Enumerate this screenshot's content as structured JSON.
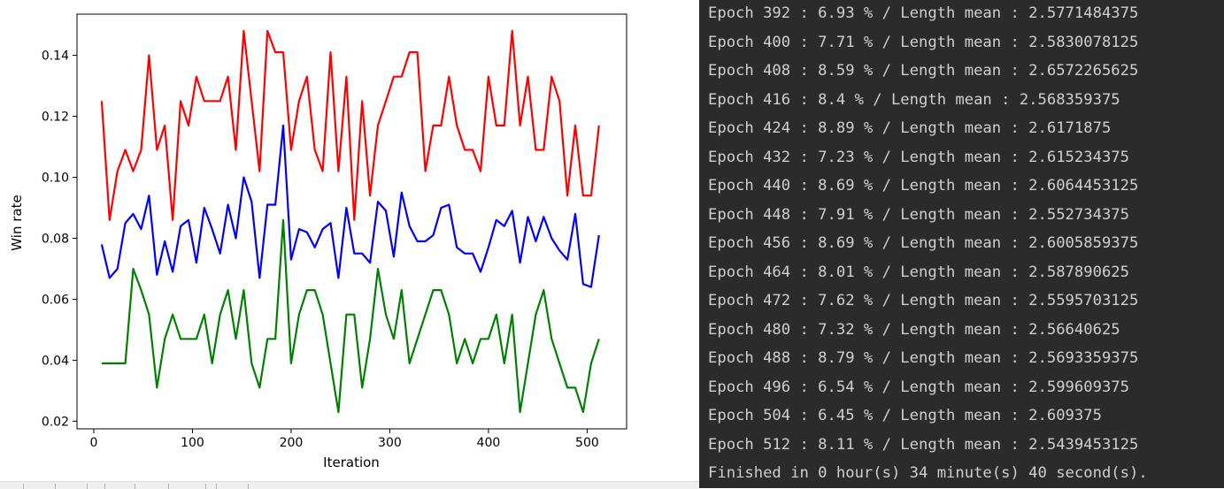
{
  "chart_data": {
    "type": "line",
    "title": "",
    "xlabel": "Iteration",
    "ylabel": "Win rate",
    "xlim": [
      -17,
      540
    ],
    "ylim": [
      0.0175,
      0.1535
    ],
    "xticks": [
      0,
      100,
      200,
      300,
      400,
      500
    ],
    "yticks": [
      0.02,
      0.04,
      0.06,
      0.08,
      0.1,
      0.12,
      0.14
    ],
    "ytick_labels": [
      "0.02",
      "0.04",
      "0.06",
      "0.08",
      "0.10",
      "0.12",
      "0.14"
    ],
    "grid": false,
    "x": [
      8,
      16,
      24,
      32,
      40,
      48,
      56,
      64,
      72,
      80,
      88,
      96,
      104,
      112,
      120,
      128,
      136,
      144,
      152,
      160,
      168,
      176,
      184,
      192,
      200,
      208,
      216,
      224,
      232,
      240,
      248,
      256,
      264,
      272,
      280,
      288,
      296,
      304,
      312,
      320,
      328,
      336,
      344,
      352,
      360,
      368,
      376,
      384,
      392,
      400,
      408,
      416,
      424,
      432,
      440,
      448,
      456,
      464,
      472,
      480,
      488,
      496,
      504,
      512
    ],
    "series": [
      {
        "color": "#ff0000",
        "values": [
          0.125,
          0.086,
          0.102,
          0.109,
          0.102,
          0.109,
          0.14,
          0.109,
          0.117,
          0.086,
          0.125,
          0.117,
          0.133,
          0.125,
          0.125,
          0.125,
          0.133,
          0.109,
          0.148,
          0.125,
          0.102,
          0.148,
          0.141,
          0.141,
          0.109,
          0.125,
          0.133,
          0.109,
          0.102,
          0.141,
          0.102,
          0.133,
          0.086,
          0.125,
          0.094,
          0.117,
          0.125,
          0.133,
          0.133,
          0.141,
          0.141,
          0.102,
          0.117,
          0.117,
          0.133,
          0.117,
          0.109,
          0.109,
          0.102,
          0.133,
          0.117,
          0.117,
          0.148,
          0.117,
          0.133,
          0.109,
          0.109,
          0.133,
          0.125,
          0.094,
          0.117,
          0.094,
          0.094,
          0.117
        ]
      },
      {
        "color": "#0000ff",
        "values": [
          0.078,
          0.067,
          0.07,
          0.085,
          0.088,
          0.083,
          0.094,
          0.068,
          0.079,
          0.069,
          0.084,
          0.086,
          0.072,
          0.09,
          0.083,
          0.075,
          0.091,
          0.08,
          0.1,
          0.092,
          0.067,
          0.091,
          0.091,
          0.117,
          0.073,
          0.083,
          0.082,
          0.077,
          0.083,
          0.085,
          0.067,
          0.09,
          0.075,
          0.075,
          0.072,
          0.092,
          0.089,
          0.074,
          0.095,
          0.084,
          0.079,
          0.079,
          0.081,
          0.09,
          0.091,
          0.077,
          0.075,
          0.075,
          0.069,
          0.077,
          0.086,
          0.084,
          0.089,
          0.072,
          0.087,
          0.079,
          0.087,
          0.08,
          0.076,
          0.073,
          0.088,
          0.065,
          0.064,
          0.081
        ]
      },
      {
        "color": "#008000",
        "values": [
          0.039,
          0.039,
          0.039,
          0.039,
          0.07,
          0.063,
          0.055,
          0.031,
          0.047,
          0.055,
          0.047,
          0.047,
          0.047,
          0.055,
          0.039,
          0.055,
          0.063,
          0.047,
          0.063,
          0.039,
          0.031,
          0.047,
          0.047,
          0.086,
          0.039,
          0.055,
          0.063,
          0.063,
          0.055,
          0.039,
          0.023,
          0.055,
          0.055,
          0.031,
          0.047,
          0.07,
          0.055,
          0.047,
          0.063,
          0.039,
          0.047,
          0.055,
          0.063,
          0.063,
          0.055,
          0.039,
          0.047,
          0.039,
          0.047,
          0.047,
          0.055,
          0.039,
          0.055,
          0.023,
          0.039,
          0.055,
          0.063,
          0.047,
          0.039,
          0.031,
          0.031,
          0.023,
          0.039,
          0.047
        ]
      }
    ]
  },
  "console": {
    "lines": [
      "Epoch 392 : 6.93 % / Length mean : 2.5771484375",
      "Epoch 400 : 7.71 % / Length mean : 2.5830078125",
      "Epoch 408 : 8.59 % / Length mean : 2.6572265625",
      "Epoch 416 : 8.4 % / Length mean : 2.568359375",
      "Epoch 424 : 8.89 % / Length mean : 2.6171875",
      "Epoch 432 : 7.23 % / Length mean : 2.615234375",
      "Epoch 440 : 8.69 % / Length mean : 2.6064453125",
      "Epoch 448 : 7.91 % / Length mean : 2.552734375",
      "Epoch 456 : 8.69 % / Length mean : 2.6005859375",
      "Epoch 464 : 8.01 % / Length mean : 2.587890625",
      "Epoch 472 : 7.62 % / Length mean : 2.5595703125",
      "Epoch 480 : 7.32 % / Length mean : 2.56640625",
      "Epoch 488 : 8.79 % / Length mean : 2.5693359375",
      "Epoch 496 : 6.54 % / Length mean : 2.599609375",
      "Epoch 504 : 6.45 % / Length mean : 2.609375",
      "Epoch 512 : 8.11 % / Length mean : 2.5439453125"
    ],
    "finished": "Finished in 0 hour(s) 34 minute(s) 40 second(s)."
  }
}
